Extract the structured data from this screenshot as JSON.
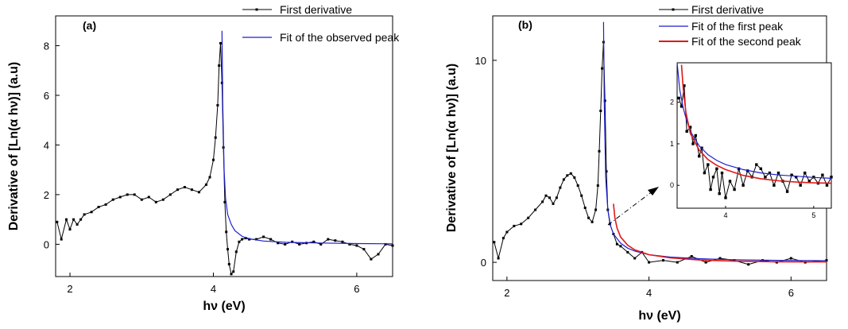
{
  "figure": {
    "panel_a_label": "(a)",
    "panel_b_label": "(b)",
    "xlabel": "hν (eV)",
    "ylabel": "Derivative of [Ln(α hν)]  (a.u)"
  },
  "colors": {
    "data": "#000000",
    "fit": "#1f1fd0",
    "fit_second": "#e01818"
  },
  "chart_data": [
    {
      "type": "line",
      "panel": "(a)",
      "xlabel": "hν (eV)",
      "ylabel": "Derivative of [Ln(α hν)]  (a.u)",
      "xlim": [
        1.8,
        6.5
      ],
      "ylim": [
        -1.3,
        9.2
      ],
      "xticks": [
        2,
        4,
        6
      ],
      "yticks": [
        0,
        2,
        4,
        6,
        8
      ],
      "legend": [
        "First derivative",
        "Fit of the observed peak"
      ],
      "legend_position": "top-right",
      "series": [
        {
          "name": "First derivative",
          "x": [
            1.82,
            1.88,
            1.95,
            2.0,
            2.05,
            2.1,
            2.15,
            2.2,
            2.3,
            2.4,
            2.5,
            2.6,
            2.7,
            2.8,
            2.9,
            3.0,
            3.1,
            3.2,
            3.3,
            3.4,
            3.5,
            3.6,
            3.7,
            3.8,
            3.9,
            3.95,
            4.0,
            4.03,
            4.06,
            4.08,
            4.1,
            4.12,
            4.14,
            4.16,
            4.18,
            4.2,
            4.22,
            4.25,
            4.28,
            4.32,
            4.36,
            4.4,
            4.45,
            4.5,
            4.6,
            4.7,
            4.8,
            4.9,
            5.0,
            5.1,
            5.2,
            5.3,
            5.4,
            5.5,
            5.6,
            5.7,
            5.8,
            5.9,
            6.0,
            6.1,
            6.2,
            6.3,
            6.4,
            6.5
          ],
          "y": [
            0.9,
            0.2,
            1.0,
            0.6,
            1.0,
            0.8,
            1.0,
            1.2,
            1.3,
            1.5,
            1.6,
            1.8,
            1.9,
            2.0,
            2.0,
            1.8,
            1.9,
            1.7,
            1.8,
            2.0,
            2.2,
            2.3,
            2.2,
            2.1,
            2.4,
            2.7,
            3.4,
            4.3,
            5.6,
            7.2,
            8.1,
            6.5,
            3.9,
            1.7,
            0.5,
            -0.2,
            -0.8,
            -1.2,
            -1.1,
            -0.3,
            0.1,
            0.2,
            0.25,
            0.2,
            0.2,
            0.3,
            0.2,
            0.05,
            0.0,
            0.1,
            0.0,
            0.05,
            0.1,
            0.0,
            0.2,
            0.15,
            0.1,
            0.0,
            -0.05,
            -0.2,
            -0.6,
            -0.4,
            0.0,
            -0.05
          ]
        },
        {
          "name": "Fit of the observed peak",
          "x": [
            4.12,
            4.13,
            4.15,
            4.17,
            4.2,
            4.25,
            4.3,
            4.4,
            4.5,
            4.7,
            5.0,
            5.5,
            6.0,
            6.5
          ],
          "y": [
            8.6,
            5.8,
            3.0,
            1.85,
            1.2,
            0.8,
            0.55,
            0.32,
            0.22,
            0.13,
            0.08,
            0.05,
            0.03,
            0.02
          ]
        }
      ]
    },
    {
      "type": "line",
      "panel": "(b)",
      "xlabel": "hν (eV)",
      "ylabel": "Derivative of [Ln(α hν)]  (a.u)",
      "xlim": [
        1.8,
        6.5
      ],
      "ylim": [
        -0.9,
        12.2
      ],
      "xticks": [
        2,
        4,
        6
      ],
      "yticks": [
        0,
        10
      ],
      "legend": [
        "First derivative",
        "Fit of the first peak",
        "Fit of the second peak"
      ],
      "legend_position": "top-right",
      "series": [
        {
          "name": "First derivative",
          "x": [
            1.82,
            1.88,
            1.95,
            2.0,
            2.1,
            2.2,
            2.3,
            2.4,
            2.5,
            2.55,
            2.6,
            2.65,
            2.7,
            2.75,
            2.8,
            2.85,
            2.9,
            2.95,
            3.0,
            3.05,
            3.1,
            3.15,
            3.2,
            3.25,
            3.28,
            3.3,
            3.32,
            3.34,
            3.36,
            3.38,
            3.4,
            3.42,
            3.45,
            3.5,
            3.55,
            3.6,
            3.7,
            3.8,
            3.9,
            4.0,
            4.2,
            4.4,
            4.6,
            4.8,
            5.0,
            5.2,
            5.4,
            5.6,
            5.8,
            6.0,
            6.2,
            6.5
          ],
          "y": [
            1.0,
            0.2,
            1.2,
            1.5,
            1.8,
            1.9,
            2.2,
            2.6,
            3.0,
            3.3,
            3.2,
            2.9,
            3.2,
            3.7,
            4.1,
            4.3,
            4.4,
            4.2,
            3.8,
            3.3,
            2.7,
            2.2,
            2.0,
            2.6,
            3.8,
            5.5,
            7.5,
            9.6,
            10.9,
            8.0,
            4.5,
            2.6,
            1.9,
            1.4,
            0.9,
            0.8,
            0.5,
            0.2,
            0.5,
            0.0,
            0.1,
            0.0,
            0.3,
            0.0,
            0.2,
            0.1,
            -0.1,
            0.1,
            0.0,
            0.2,
            0.0,
            0.1
          ]
        },
        {
          "name": "Fit of the first peak",
          "x": [
            3.36,
            3.37,
            3.39,
            3.42,
            3.46,
            3.5,
            3.6,
            3.7,
            3.8,
            4.0,
            4.3,
            4.7,
            5.2,
            5.8,
            6.5
          ],
          "y": [
            11.9,
            8.0,
            4.2,
            2.6,
            1.8,
            1.4,
            0.95,
            0.7,
            0.56,
            0.38,
            0.26,
            0.18,
            0.13,
            0.1,
            0.08
          ]
        },
        {
          "name": "Fit of the second peak",
          "x": [
            3.5,
            3.52,
            3.55,
            3.6,
            3.7,
            3.8,
            4.0,
            4.3,
            4.7,
            5.2,
            5.8,
            6.5
          ],
          "y": [
            2.9,
            2.2,
            1.7,
            1.25,
            0.85,
            0.62,
            0.38,
            0.22,
            0.12,
            0.06,
            0.03,
            0.02
          ]
        }
      ]
    },
    {
      "type": "line",
      "panel": "(b) inset",
      "xlim": [
        3.45,
        5.2
      ],
      "ylim": [
        -0.55,
        2.95
      ],
      "xticks": [
        4,
        5
      ],
      "yticks": [
        0,
        1,
        2
      ],
      "series": [
        {
          "name": "First derivative",
          "x": [
            3.47,
            3.5,
            3.53,
            3.56,
            3.6,
            3.63,
            3.66,
            3.7,
            3.73,
            3.76,
            3.8,
            3.83,
            3.86,
            3.9,
            3.93,
            3.96,
            4.0,
            4.05,
            4.1,
            4.15,
            4.2,
            4.25,
            4.3,
            4.35,
            4.4,
            4.45,
            4.5,
            4.55,
            4.6,
            4.65,
            4.7,
            4.75,
            4.8,
            4.85,
            4.9,
            4.95,
            5.0,
            5.05,
            5.1,
            5.15,
            5.2
          ],
          "y": [
            2.1,
            1.9,
            2.4,
            1.3,
            1.4,
            1.0,
            1.2,
            0.7,
            0.9,
            0.3,
            0.5,
            -0.1,
            0.2,
            0.4,
            -0.2,
            0.3,
            -0.3,
            0.1,
            -0.1,
            0.4,
            0.0,
            0.35,
            0.2,
            0.5,
            0.4,
            0.2,
            0.3,
            0.0,
            0.3,
            0.1,
            -0.15,
            0.25,
            0.2,
            0.0,
            0.3,
            0.1,
            0.2,
            0.05,
            0.25,
            0.0,
            0.2
          ]
        },
        {
          "name": "Fit of the first peak",
          "x": [
            3.45,
            3.48,
            3.52,
            3.56,
            3.6,
            3.7,
            3.8,
            3.9,
            4.0,
            4.2,
            4.4,
            4.6,
            4.8,
            5.0,
            5.2
          ],
          "y": [
            2.95,
            2.3,
            1.85,
            1.55,
            1.3,
            0.95,
            0.74,
            0.6,
            0.5,
            0.38,
            0.3,
            0.25,
            0.22,
            0.19,
            0.17
          ]
        },
        {
          "name": "Fit of the second peak",
          "x": [
            3.5,
            3.52,
            3.55,
            3.6,
            3.7,
            3.8,
            3.9,
            4.0,
            4.2,
            4.4,
            4.6,
            4.8,
            5.0,
            5.2
          ],
          "y": [
            2.9,
            2.3,
            1.75,
            1.25,
            0.85,
            0.62,
            0.48,
            0.38,
            0.24,
            0.16,
            0.11,
            0.08,
            0.06,
            0.05
          ]
        }
      ]
    }
  ]
}
